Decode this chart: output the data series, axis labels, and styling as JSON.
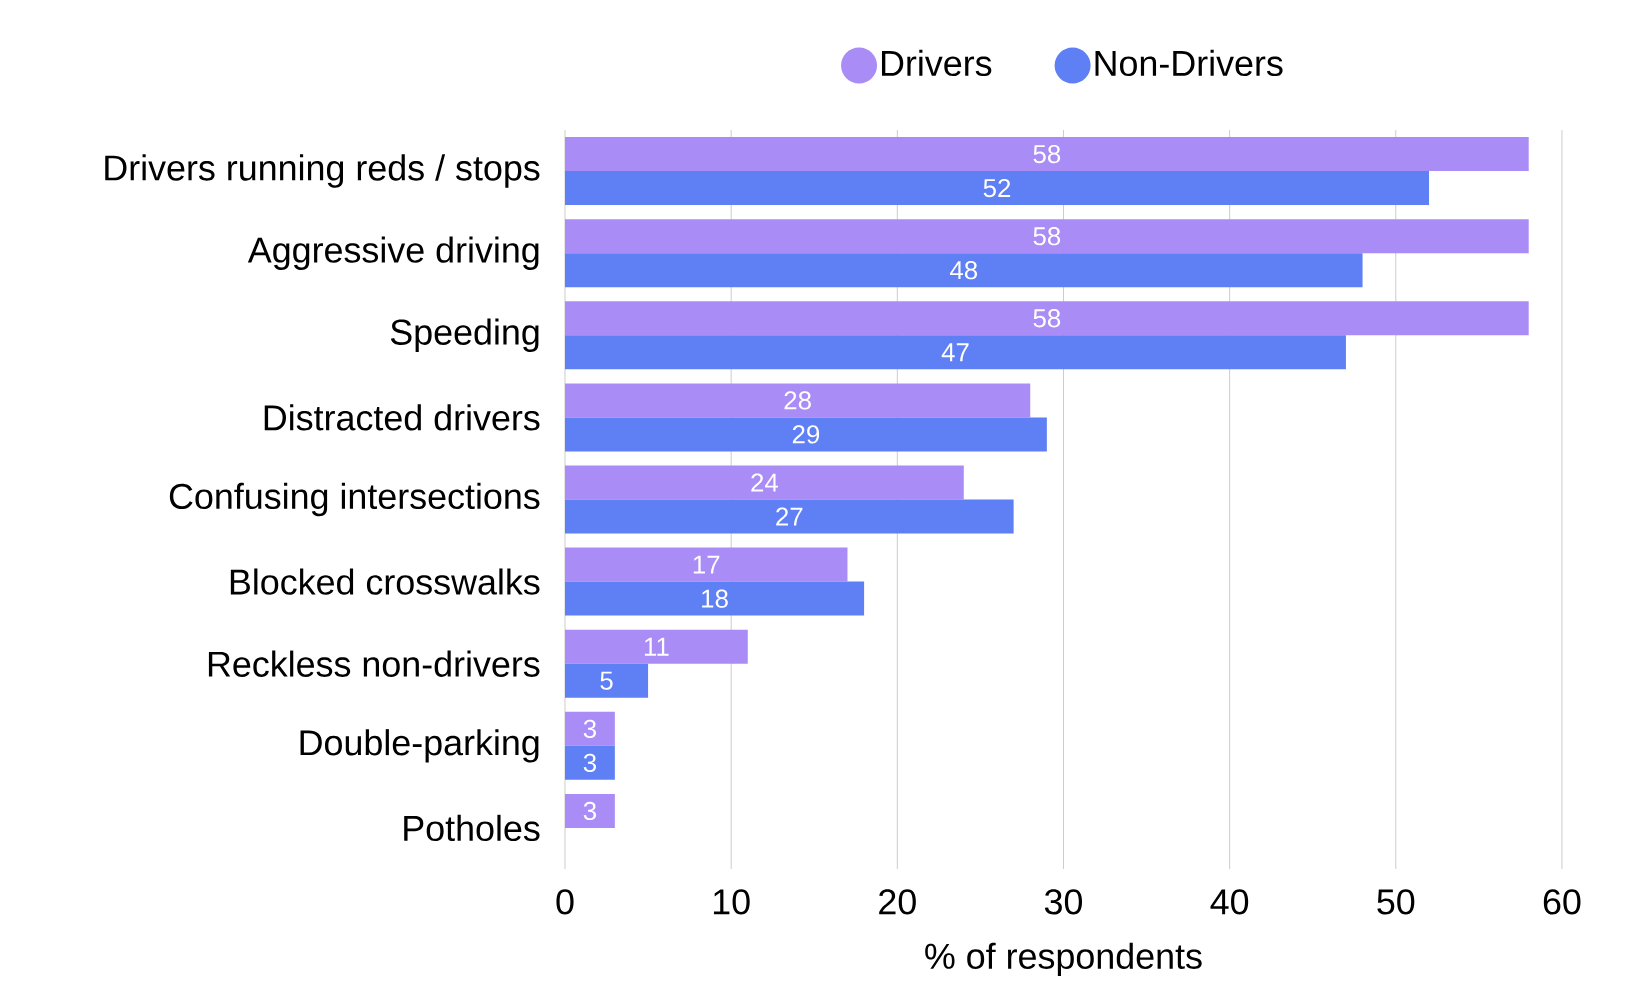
{
  "chart_data": {
    "type": "bar",
    "orientation": "horizontal",
    "xlabel": "% of respondents",
    "categories": [
      "Drivers running reds / stops",
      "Aggressive driving",
      "Speeding",
      "Distracted drivers",
      "Confusing intersections",
      "Blocked crosswalks",
      "Reckless non-drivers",
      "Double-parking",
      "Potholes"
    ],
    "series": [
      {
        "name": "Drivers",
        "color": "#a98cf5",
        "values": [
          58,
          58,
          58,
          28,
          24,
          17,
          11,
          3,
          3
        ]
      },
      {
        "name": "Non-Drivers",
        "color": "#5f7ff5",
        "values": [
          52,
          48,
          47,
          29,
          27,
          18,
          5,
          3,
          null
        ]
      }
    ],
    "xlim": [
      0,
      60
    ],
    "xticks": [
      0,
      10,
      20,
      30,
      40,
      50,
      60
    ],
    "grid": "x",
    "legend": "top",
    "data_labels": true
  }
}
